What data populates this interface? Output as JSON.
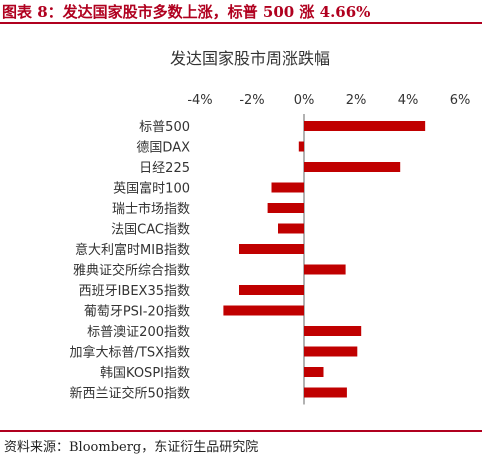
{
  "header": {
    "title": "图表 8：发达国家股市多数上涨，标普 500 涨 4.66%",
    "accent_color": "#b0001f"
  },
  "footer": {
    "source": "资料来源：Bloomberg，东证衍生品研究院"
  },
  "chart_data": {
    "type": "bar",
    "orientation": "horizontal",
    "title": "发达国家股市周涨跌幅",
    "xlabel": "",
    "ylabel": "",
    "xlim": [
      -4,
      6
    ],
    "xticks": [
      -4,
      -2,
      0,
      2,
      4,
      6
    ],
    "tick_suffix": "%",
    "grid": false,
    "bar_color": "#c00000",
    "categories": [
      "标普500",
      "德国DAX",
      "日经225",
      "英国富时100",
      "瑞士市场指数",
      "法国CAC指数",
      "意大利富时MIB指数",
      "雅典证交所综合指数",
      "西班牙IBEX35指数",
      "葡萄牙PSI-20指数",
      "标普澳证200指数",
      "加拿大标普/TSX指数",
      "韩国KOSPI指数",
      "新西兰证交所50指数"
    ],
    "values": [
      4.66,
      -0.2,
      3.7,
      -1.25,
      -1.4,
      -1.0,
      -2.5,
      1.6,
      -2.5,
      -3.1,
      2.2,
      2.05,
      0.75,
      1.65
    ]
  }
}
